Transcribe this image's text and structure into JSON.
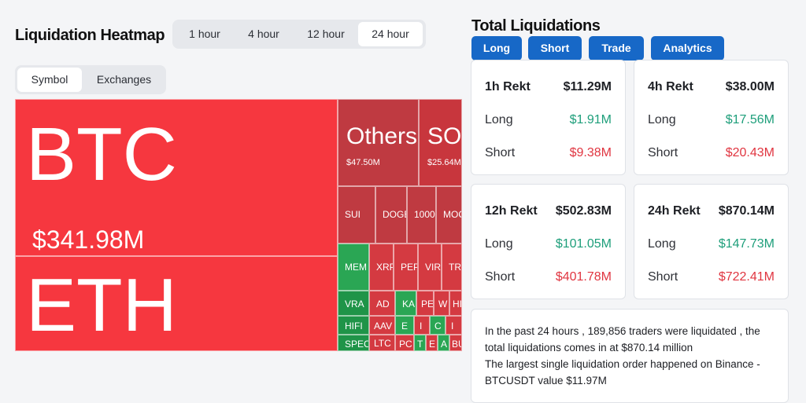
{
  "heatmap": {
    "title": "Liquidation Heatmap",
    "timeframes": [
      "1 hour",
      "4 hour",
      "12 hour",
      "24 hour"
    ],
    "active_timeframe": "24 hour",
    "views": [
      "Symbol",
      "Exchanges"
    ],
    "active_view": "Symbol",
    "tiles": {
      "btc": {
        "symbol": "BTC",
        "value": "$341.98M"
      },
      "eth": {
        "symbol": "ETH"
      },
      "others": {
        "symbol": "Others",
        "value": "$47.50M"
      },
      "sol": {
        "symbol": "SOL",
        "value": "$25.64M"
      },
      "sui": "SUI",
      "doge": "DOGE",
      "t1000": "1000",
      "moo": "MOO",
      "mem": "MEM",
      "xrp": "XRP",
      "pep": "PEP",
      "vir": "VIR",
      "tr": "TR",
      "vra": "VRA",
      "ad": "AD",
      "ka": "KA",
      "pe": "PE",
      "w": "W",
      "hi": "HI",
      "hifi": "HIFI",
      "aav": "AAV",
      "e1": "E",
      "i1": "I",
      "o1": "C",
      "i2": "I",
      "spec": "SPEC",
      "ltc": "LTC",
      "pc": "PC",
      "t1": "T",
      "e2": "E",
      "a1": "A",
      "bu": "BU"
    }
  },
  "liquidations": {
    "title": "Total Liquidations",
    "tabs": [
      "Long",
      "Short",
      "Trade",
      "Analytics"
    ],
    "cards": [
      {
        "label": "1h Rekt",
        "total": "$11.29M",
        "long_label": "Long",
        "long": "$1.91M",
        "short_label": "Short",
        "short": "$9.38M"
      },
      {
        "label": "4h Rekt",
        "total": "$38.00M",
        "long_label": "Long",
        "long": "$17.56M",
        "short_label": "Short",
        "short": "$20.43M"
      },
      {
        "label": "12h Rekt",
        "total": "$502.83M",
        "long_label": "Long",
        "long": "$101.05M",
        "short_label": "Short",
        "short": "$401.78M"
      },
      {
        "label": "24h Rekt",
        "total": "$870.14M",
        "long_label": "Long",
        "long": "$147.73M",
        "short_label": "Short",
        "short": "$722.41M"
      }
    ],
    "summary": {
      "line1": "In the past 24 hours , 189,856 traders were liquidated , the total liquidations comes in at $870.14 million",
      "line2": "The largest single liquidation order happened on Binance - BTCUSDT value $11.97M"
    }
  },
  "colors": {
    "long": "#1d9e7a",
    "short": "#e03540",
    "accent": "#1768c7",
    "heat_red": "#f6373f",
    "heat_green": "#2aa654"
  }
}
